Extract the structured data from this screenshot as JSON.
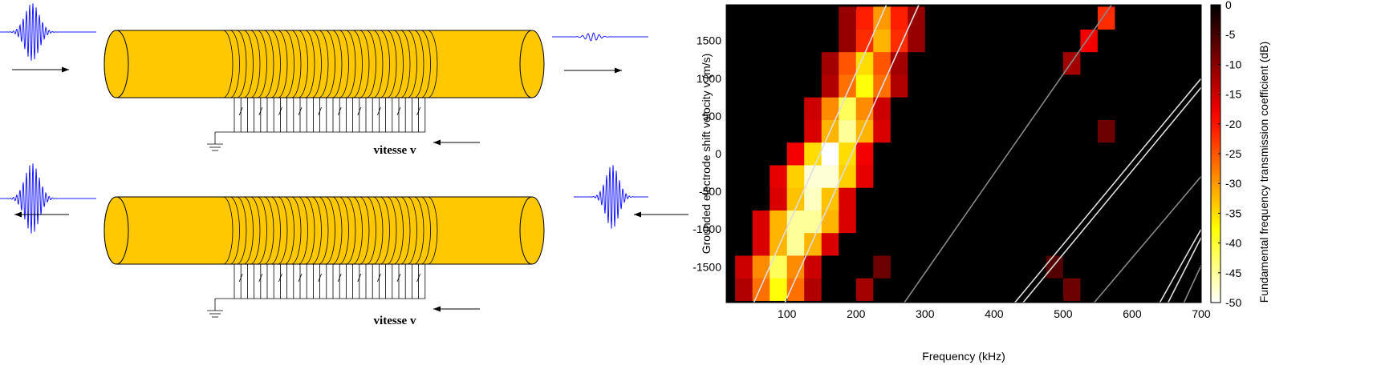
{
  "diagram": {
    "labels": [
      "vitesse v",
      "vitesse v"
    ]
  },
  "chart_data": {
    "type": "heatmap",
    "xlabel": "Frequency (kHz)",
    "ylabel": "Grounded electrode shift velocity v (m/s)",
    "colorbar_label": "Fundamental frequency transmission coefficient (dB)",
    "colormap": "hot",
    "xlim": [
      12,
      700
    ],
    "ylim": [
      -1975,
      1975
    ],
    "xticks": [
      100,
      200,
      300,
      400,
      500,
      600,
      700
    ],
    "yticks": [
      -1500,
      -1000,
      -500,
      0,
      500,
      1000,
      1500
    ],
    "clim": [
      -50,
      0
    ],
    "colorbar_ticks": [
      0,
      -5,
      -10,
      -15,
      -20,
      -25,
      -30,
      -35,
      -40,
      -45,
      -50
    ],
    "x_bins": [
      0,
      25,
      50,
      75,
      100,
      125,
      150,
      175,
      200,
      225,
      250,
      275,
      300,
      325,
      350,
      375,
      400,
      425,
      450,
      475,
      500,
      525,
      550,
      575,
      600,
      625,
      650,
      675,
      700
    ],
    "y_bins": [
      -1950,
      -1650,
      -1350,
      -1050,
      -750,
      -450,
      -150,
      150,
      450,
      750,
      1050,
      1350,
      1650,
      1950
    ],
    "z": [
      [
        0,
        -13,
        -27,
        -38,
        -27,
        -13,
        0,
        0,
        -12,
        0,
        0,
        0,
        0,
        0,
        0,
        0,
        0,
        0,
        0,
        0,
        -8,
        0,
        0,
        0,
        0,
        0,
        0,
        0
      ],
      [
        0,
        -15,
        -29,
        -42,
        -29,
        -15,
        0,
        0,
        0,
        -8,
        0,
        0,
        0,
        0,
        0,
        0,
        0,
        0,
        0,
        -6,
        0,
        0,
        0,
        0,
        0,
        0,
        0,
        0
      ],
      [
        0,
        0,
        -16,
        -32,
        -45,
        -32,
        -16,
        0,
        0,
        0,
        0,
        0,
        0,
        0,
        0,
        0,
        0,
        0,
        0,
        0,
        0,
        0,
        0,
        0,
        0,
        0,
        0,
        0
      ],
      [
        0,
        0,
        -16,
        -32,
        -45,
        -45,
        -32,
        -16,
        0,
        0,
        0,
        0,
        0,
        0,
        0,
        0,
        0,
        0,
        0,
        0,
        0,
        0,
        0,
        0,
        0,
        0,
        0,
        0
      ],
      [
        0,
        0,
        0,
        -16,
        -33,
        -47,
        -33,
        -16,
        0,
        0,
        0,
        0,
        0,
        0,
        0,
        0,
        0,
        0,
        0,
        0,
        0,
        0,
        0,
        0,
        0,
        0,
        0,
        0
      ],
      [
        0,
        0,
        0,
        -17,
        -34,
        -48,
        -48,
        -34,
        -17,
        0,
        0,
        0,
        0,
        0,
        0,
        0,
        0,
        0,
        0,
        0,
        0,
        0,
        0,
        0,
        0,
        0,
        0,
        0
      ],
      [
        0,
        0,
        0,
        0,
        -18,
        -35,
        -50,
        -35,
        -18,
        0,
        0,
        0,
        0,
        0,
        0,
        0,
        0,
        0,
        0,
        0,
        0,
        0,
        0,
        0,
        0,
        0,
        0,
        0
      ],
      [
        0,
        0,
        0,
        0,
        0,
        -16,
        -32,
        -45,
        -32,
        -16,
        0,
        0,
        0,
        0,
        0,
        0,
        0,
        0,
        0,
        0,
        0,
        0,
        -8,
        0,
        0,
        0,
        0,
        0
      ],
      [
        0,
        0,
        0,
        0,
        0,
        -15,
        -29,
        -42,
        -29,
        -15,
        0,
        0,
        0,
        0,
        0,
        0,
        0,
        0,
        0,
        0,
        0,
        0,
        0,
        0,
        0,
        0,
        0,
        0
      ],
      [
        0,
        0,
        0,
        0,
        0,
        0,
        -13,
        -27,
        -38,
        -27,
        -13,
        0,
        0,
        0,
        0,
        0,
        0,
        0,
        0,
        0,
        0,
        0,
        0,
        0,
        0,
        0,
        0,
        0
      ],
      [
        0,
        0,
        0,
        0,
        0,
        0,
        -12,
        -25,
        -35,
        -25,
        -12,
        0,
        0,
        0,
        0,
        0,
        0,
        0,
        0,
        0,
        -12,
        0,
        0,
        0,
        0,
        0,
        0,
        0
      ],
      [
        0,
        0,
        0,
        0,
        0,
        0,
        0,
        -11,
        -22,
        -32,
        -22,
        -11,
        0,
        0,
        0,
        0,
        0,
        0,
        0,
        0,
        0,
        -18,
        0,
        0,
        0,
        0,
        0,
        0
      ],
      [
        0,
        0,
        0,
        0,
        0,
        0,
        0,
        -11,
        -21,
        -30,
        -21,
        -11,
        0,
        0,
        0,
        0,
        0,
        0,
        0,
        0,
        0,
        0,
        -22,
        0,
        0,
        0,
        0,
        0
      ]
    ],
    "lines": [
      {
        "color": "#dddddd",
        "x": [
          52,
          244
        ],
        "y": [
          -1975,
          1975
        ]
      },
      {
        "color": "#dddddd",
        "x": [
          97,
          291
        ],
        "y": [
          -1975,
          1975
        ]
      },
      {
        "color": "#888888",
        "x": [
          270,
          570
        ],
        "y": [
          -1975,
          1975
        ]
      },
      {
        "color": "#dddddd",
        "x": [
          430,
          700
        ],
        "y": [
          -1975,
          1000
        ]
      },
      {
        "color": "#dddddd",
        "x": [
          442,
          700
        ],
        "y": [
          -1975,
          880
        ]
      },
      {
        "color": "#888888",
        "x": [
          545,
          700
        ],
        "y": [
          -1975,
          -300
        ]
      },
      {
        "color": "#dddddd",
        "x": [
          640,
          700
        ],
        "y": [
          -1975,
          -1000
        ]
      },
      {
        "color": "#dddddd",
        "x": [
          652,
          700
        ],
        "y": [
          -1975,
          -1110
        ]
      },
      {
        "color": "#888888",
        "x": [
          675,
          700
        ],
        "y": [
          -1975,
          -1480
        ]
      }
    ]
  }
}
